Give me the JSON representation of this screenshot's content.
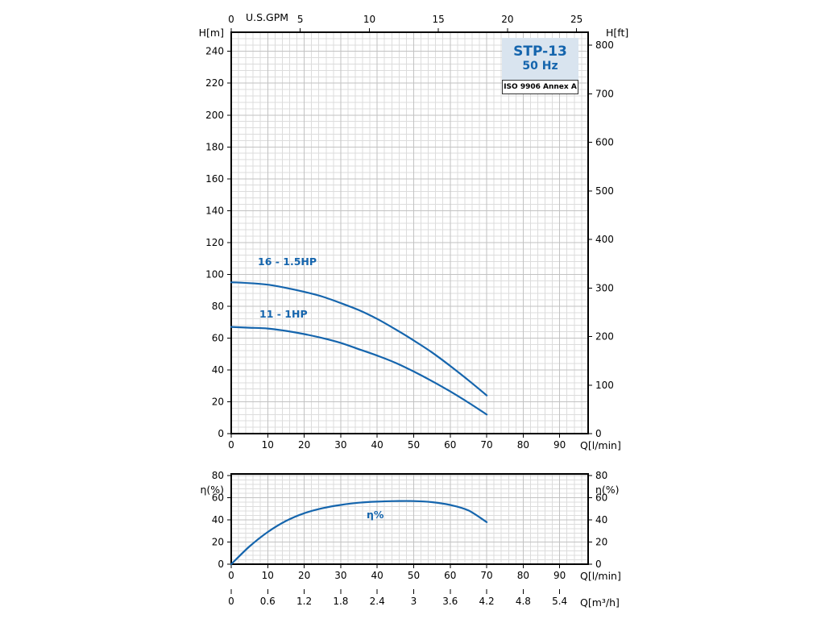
{
  "badge": {
    "model": "STP-13",
    "frequency": "50 Hz",
    "standard": "ISO 9906 Annex A"
  },
  "colors": {
    "accent": "#1565ad",
    "curve": "#1565ad",
    "grid_minor": "#dcdcdc",
    "grid_major": "#c2c2c2",
    "badge_bg": "#d9e4ef"
  },
  "chart_data": [
    {
      "type": "line",
      "x_bottom": {
        "label": "Q[l/min]",
        "ticks": [
          0,
          10,
          20,
          30,
          40,
          50,
          60,
          70,
          80,
          90
        ],
        "max": 97.8
      },
      "x_top": {
        "label": "U.S.GPM",
        "ticks": [
          0,
          5,
          10,
          15,
          20,
          25
        ],
        "lmin_per_unit": 3.78541
      },
      "y_left": {
        "label": "H[m]",
        "ticks": [
          0,
          20,
          40,
          60,
          80,
          100,
          120,
          140,
          160,
          180,
          200,
          220,
          240
        ],
        "max": 252
      },
      "y_right": {
        "label": "H[ft]",
        "ticks": [
          0,
          100,
          200,
          300,
          400,
          500,
          600,
          700,
          800
        ],
        "m_per_unit": 0.3048
      },
      "grid": "on",
      "series": [
        {
          "name": "16 - 1.5HP",
          "x": [
            0,
            5,
            10,
            15,
            20,
            25,
            30,
            35,
            40,
            45,
            50,
            55,
            60,
            65,
            70
          ],
          "y": [
            95,
            94.5,
            93.5,
            91.5,
            89,
            86,
            82,
            77.5,
            72,
            65.5,
            58.5,
            51,
            42.5,
            33.5,
            24
          ]
        },
        {
          "name": "11 - 1HP",
          "x": [
            0,
            5,
            10,
            15,
            20,
            25,
            30,
            35,
            40,
            45,
            50,
            55,
            60,
            65,
            70
          ],
          "y": [
            67,
            66.5,
            66,
            64.5,
            62.5,
            60,
            57,
            53,
            49,
            44.5,
            39,
            33,
            26.5,
            19.5,
            12
          ]
        }
      ]
    },
    {
      "type": "line",
      "x_bottom": {
        "label": "Q[l/min]",
        "ticks": [
          0,
          10,
          20,
          30,
          40,
          50,
          60,
          70,
          80,
          90
        ],
        "max": 97.8
      },
      "x_bottom2": {
        "label": "Q[m³/h]",
        "ticks": [
          0,
          0.6,
          1.2,
          1.8,
          2.4,
          3,
          3.6,
          4.2,
          4.8,
          5.4
        ],
        "lmin_per_unit": 16.6667
      },
      "y_left": {
        "label": "η(%)",
        "ticks": [
          0,
          20,
          40,
          60,
          80
        ],
        "max": 81.5
      },
      "y_right": {
        "label": "η(%)",
        "ticks": [
          0,
          20,
          40,
          60,
          80
        ]
      },
      "grid": "on",
      "series": [
        {
          "name": "η%",
          "x": [
            0,
            5,
            10,
            15,
            20,
            25,
            30,
            35,
            40,
            45,
            50,
            55,
            60,
            65,
            70
          ],
          "y": [
            0,
            16,
            29,
            39,
            46,
            50.5,
            53.5,
            55.5,
            56.5,
            57,
            57,
            56,
            53.5,
            48.5,
            38
          ]
        }
      ]
    }
  ]
}
